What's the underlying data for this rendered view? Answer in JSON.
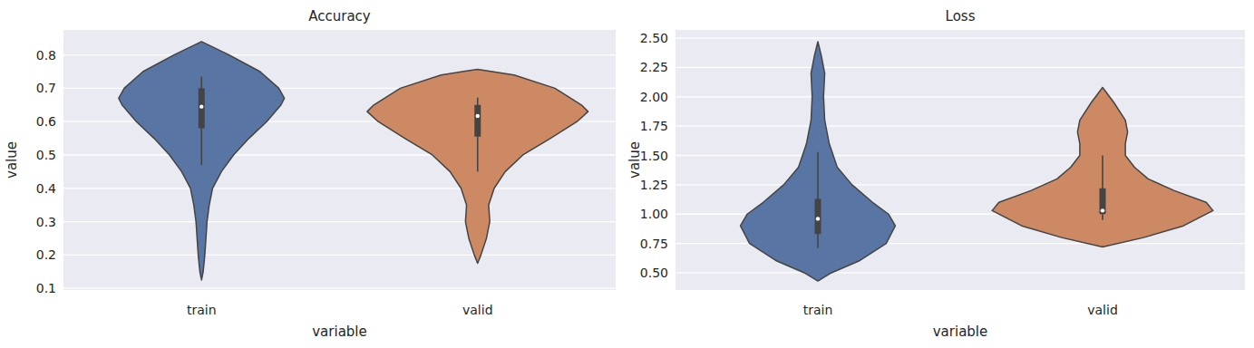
{
  "chart_data": [
    {
      "type": "violin",
      "title": "Accuracy",
      "x_label": "variable",
      "y_label": "value",
      "categories": [
        "train",
        "valid"
      ],
      "colors": [
        "#5975a4",
        "#cc8963"
      ],
      "ylim": [
        0.095,
        0.875
      ],
      "yticks": [
        0.1,
        0.2,
        0.3,
        0.4,
        0.5,
        0.6,
        0.7,
        0.8
      ],
      "grid": true,
      "violins": [
        {
          "y": [
            0.125,
            0.15,
            0.2,
            0.25,
            0.3,
            0.35,
            0.4,
            0.45,
            0.5,
            0.55,
            0.6,
            0.65,
            0.67,
            0.7,
            0.75,
            0.8,
            0.84
          ],
          "density": [
            0,
            0.015,
            0.03,
            0.04,
            0.05,
            0.07,
            0.1,
            0.18,
            0.29,
            0.43,
            0.59,
            0.72,
            0.75,
            0.7,
            0.53,
            0.25,
            0
          ],
          "q1": 0.58,
          "median": 0.645,
          "q3": 0.7,
          "whisker_low": 0.47,
          "whisker_high": 0.735
        },
        {
          "y": [
            0.175,
            0.2,
            0.25,
            0.3,
            0.35,
            0.4,
            0.45,
            0.5,
            0.55,
            0.6,
            0.63,
            0.65,
            0.7,
            0.74,
            0.757
          ],
          "density": [
            0,
            0.03,
            0.08,
            0.11,
            0.1,
            0.15,
            0.25,
            0.41,
            0.66,
            0.9,
            1.0,
            0.94,
            0.7,
            0.33,
            0
          ],
          "q1": 0.555,
          "median": 0.617,
          "q3": 0.65,
          "whisker_low": 0.45,
          "whisker_high": 0.672
        }
      ]
    },
    {
      "type": "violin",
      "title": "Loss",
      "x_label": "variable",
      "y_label": "value",
      "categories": [
        "train",
        "valid"
      ],
      "colors": [
        "#5975a4",
        "#cc8963"
      ],
      "ylim": [
        0.353,
        2.57
      ],
      "yticks": [
        {
          "value": 0.5,
          "label": "0.50"
        },
        0.75,
        {
          "value": 1,
          "label": "1.00"
        },
        1.25,
        {
          "value": 1.5,
          "label": "1.50"
        },
        1.75,
        {
          "value": 2,
          "label": "2.00"
        },
        2.25,
        {
          "value": 2.5,
          "label": "2.50"
        }
      ],
      "grid": true,
      "violins": [
        {
          "y": [
            0.43,
            0.5,
            0.6,
            0.75,
            0.9,
            1.0,
            1.1,
            1.25,
            1.4,
            1.6,
            1.8,
            2.0,
            2.2,
            2.35,
            2.47
          ],
          "density": [
            0,
            0.12,
            0.36,
            0.6,
            0.68,
            0.62,
            0.48,
            0.3,
            0.17,
            0.1,
            0.06,
            0.05,
            0.06,
            0.03,
            0
          ],
          "q1": 0.83,
          "median": 0.96,
          "q3": 1.13,
          "whisker_low": 0.71,
          "whisker_high": 1.53
        },
        {
          "y": [
            0.72,
            0.8,
            0.9,
            1.03,
            1.1,
            1.2,
            1.3,
            1.4,
            1.5,
            1.6,
            1.7,
            1.8,
            1.95,
            2.08
          ],
          "density": [
            0,
            0.36,
            0.71,
            0.97,
            0.91,
            0.63,
            0.4,
            0.28,
            0.2,
            0.2,
            0.22,
            0.2,
            0.1,
            0
          ],
          "q1": 1.0,
          "median": 1.03,
          "q3": 1.22,
          "whisker_low": 0.95,
          "whisker_high": 1.5
        }
      ]
    }
  ]
}
